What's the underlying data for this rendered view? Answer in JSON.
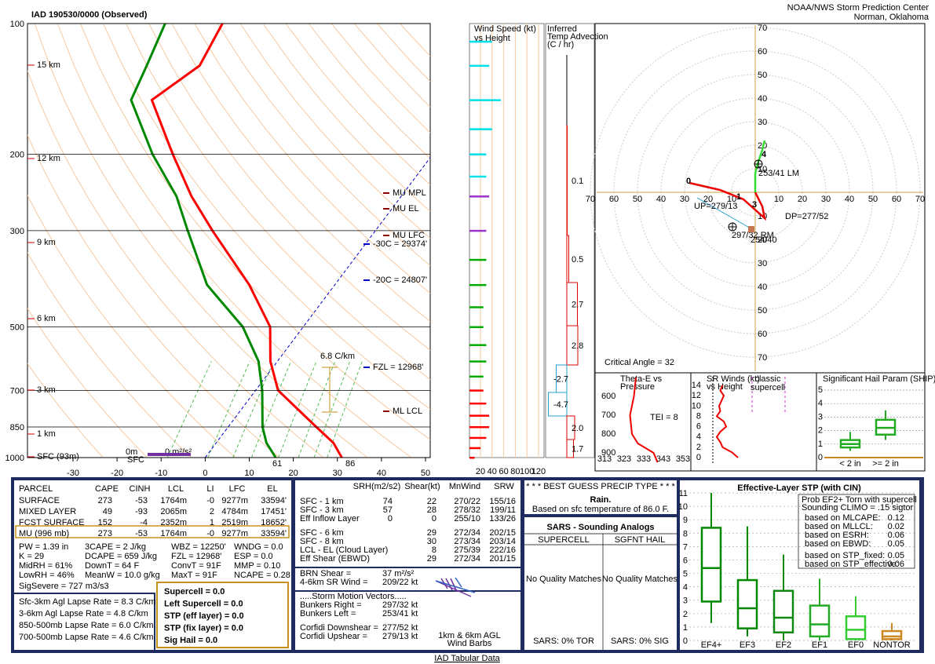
{
  "header": {
    "title": "IAD   190530/0000  (Observed)",
    "org": "NOAA/NWS Storm Prediction Center",
    "location": "Norman, Oklahoma"
  },
  "skewt": {
    "pressure_ticks": [
      100,
      200,
      300,
      500,
      700,
      850,
      1000
    ],
    "temp_ticks": [
      -30,
      -20,
      -10,
      0,
      10,
      20,
      30,
      40,
      50
    ],
    "profile": {
      "pressure": [
        1000,
        925,
        850,
        700,
        600,
        500,
        400,
        300,
        250,
        200,
        150,
        125,
        100
      ],
      "temperature": [
        31,
        26.6,
        20,
        5.1,
        -1.6,
        -7.5,
        -19.4,
        -37,
        -47.6,
        -59,
        -73,
        -68,
        -70
      ],
      "dewpoint": [
        16,
        11.4,
        7.8,
        1.5,
        -4.3,
        -13.7,
        -29,
        -42.6,
        -51,
        -63.6,
        -77.7,
        -80,
        -83
      ]
    },
    "colors": {
      "temperature": "#ff0000",
      "dewpoint": "#008800"
    },
    "height_labels": [
      "15 km",
      "12 km",
      "9 km",
      "6 km",
      "3 km",
      "1 km",
      "SFC (93m)"
    ],
    "annotations": [
      "MU MPL",
      "MU EL",
      "MU LFC",
      "-30C = 29374'",
      "-20C = 24807'",
      "FZL = 12968'",
      "ML LCL",
      "6.8 C/km",
      "0m",
      "SFC",
      "0 m²/s²",
      "61",
      "86"
    ]
  },
  "wind_speed": {
    "title": [
      "Wind Speed (kt)",
      "vs Height"
    ],
    "ticks": [
      20,
      40,
      60,
      80,
      100,
      120
    ],
    "pressure": [
      110,
      125,
      150,
      175,
      200,
      225,
      250,
      300,
      350,
      400,
      450,
      500,
      550,
      600,
      650,
      700,
      750,
      800,
      850,
      900,
      950,
      1000
    ],
    "speed": [
      40,
      35,
      55,
      40,
      30,
      30,
      35,
      30,
      30,
      30,
      25,
      25,
      30,
      30,
      25,
      25,
      30,
      35,
      35,
      30,
      20,
      10
    ],
    "colors": [
      "#00e0e8",
      "#9933cc",
      "#00aa00",
      "#ff0000"
    ]
  },
  "temp_advection": {
    "title": [
      "Inferred",
      "Temp Advection",
      "(C / hr)"
    ],
    "values": [
      0.1,
      0.5,
      2.7,
      2.8,
      -2.7,
      -4.7,
      2,
      1.7
    ],
    "value_labels": [
      "0.1",
      "0.5",
      "2.7",
      "2.8",
      "-2.7",
      "-4.7",
      "2.0",
      "1.7"
    ]
  },
  "hodograph": {
    "ring_labels": [
      10,
      20,
      30,
      40,
      50,
      60,
      70
    ],
    "u": [
      -28,
      -15,
      -5,
      4,
      3,
      0,
      0,
      1,
      2,
      3,
      4
    ],
    "v": [
      4,
      1,
      -3,
      -11,
      -6,
      0,
      8,
      12,
      15,
      18,
      22
    ],
    "height_marks": [
      "0",
      "1",
      "3",
      "4"
    ],
    "labels": [
      "253/41 LM",
      "UP=279/13",
      "DP=277/52",
      "297/32 RM",
      "254/40"
    ],
    "critical_angle": "Critical Angle = 32"
  },
  "theta_e": {
    "title": [
      "Theta-E vs",
      "Pressure"
    ],
    "pressure_ticks": [
      600,
      700,
      800,
      900
    ],
    "theta_ticks": [
      313,
      323,
      333,
      343,
      353
    ],
    "pressure": [
      500,
      600,
      700,
      800,
      850,
      900,
      950
    ],
    "theta_e": [
      329,
      328,
      326,
      327,
      330,
      338,
      340
    ],
    "tei": "TEI = 8"
  },
  "sr_winds": {
    "title": [
      "SR Winds (kt)",
      "vs Height"
    ],
    "height_ticks": [
      0,
      2,
      4,
      6,
      8,
      10,
      12,
      14
    ],
    "height": [
      0,
      1,
      2,
      3,
      4,
      5,
      6,
      7,
      8,
      9,
      10,
      11,
      12,
      13,
      14
    ],
    "speed": [
      30,
      25,
      17,
      15,
      12,
      15,
      20,
      18,
      12,
      15,
      14,
      16,
      18,
      15,
      17
    ],
    "note": [
      "classic",
      "supercell"
    ]
  },
  "ship": {
    "title": "Significant Hail Param (SHIP)",
    "ticks": [
      0,
      1,
      2,
      3,
      4,
      5
    ],
    "categories": [
      "< 2 in",
      ">= 2 in"
    ],
    "color": "#22aa22",
    "boxes": [
      {
        "whisker_low": 0.5,
        "q1": 0.75,
        "median": 1,
        "q3": 1.3,
        "whisker_high": 1.9
      },
      {
        "whisker_low": 1.3,
        "q1": 1.7,
        "median": 2.2,
        "q3": 2.8,
        "whisker_high": 3.5
      }
    ]
  },
  "parcels": {
    "header": [
      "PARCEL",
      "CAPE",
      "CINH",
      "LCL",
      "LI",
      "LFC",
      "EL"
    ],
    "rows": [
      [
        "SURFACE",
        "273",
        "-53",
        "1764m",
        "-0",
        "9277m",
        "33594'"
      ],
      [
        "MIXED LAYER",
        "49",
        "-93",
        "2065m",
        "2",
        "4784m",
        "17451'"
      ],
      [
        "FCST SURFACE",
        "152",
        "-4",
        "2352m",
        "1",
        "2519m",
        "18652'"
      ],
      [
        "MU   (996 mb)",
        "273",
        "-53",
        "1764m",
        "-0",
        "9277m",
        "33594'"
      ]
    ]
  },
  "indices": [
    [
      "PW = 1.39 in",
      "3CAPE = 2 J/kg",
      "WBZ = 12250'",
      "WNDG = 0.0"
    ],
    [
      "K = 29",
      "DCAPE = 659 J/kg",
      "FZL = 12968'",
      "ESP = 0.0"
    ],
    [
      "MidRH = 61%",
      "DownT = 64 F",
      "ConvT = 91F",
      "MMP = 0.10"
    ],
    [
      "LowRH = 46%",
      "MeanW = 10.0 g/kg",
      "MaxT = 91F",
      "NCAPE = 0.28"
    ]
  ],
  "sig_severe": "SigSevere = 727 m3/s3",
  "lapse_rates": [
    "Sfc-3km Agl Lapse Rate = 8.3 C/km",
    "3-6km Agl Lapse Rate = 4.8 C/km",
    "850-500mb Lapse Rate = 6.0 C/km",
    "700-500mb Lapse Rate = 4.6 C/km"
  ],
  "composites": [
    "Supercell = 0.0",
    "Left Supercell = 0.0",
    "STP (eff layer) = 0.0",
    "STP (fix layer) = 0.0",
    "Sig Hail = 0.0"
  ],
  "kinematics": {
    "header": [
      "SRH(m2/s2)",
      "Shear(kt)",
      "MnWind",
      "SRW"
    ],
    "rows": [
      [
        "SFC - 1 km",
        "74",
        "22",
        "270/22",
        "155/16"
      ],
      [
        "SFC - 3 km",
        "57",
        "28",
        "278/32",
        "199/11"
      ],
      [
        "Eff Inflow Layer",
        "0",
        "0",
        "255/10",
        "133/26"
      ],
      [
        "SFC - 6 km",
        null,
        "29",
        "272/34",
        "202/15"
      ],
      [
        "SFC - 8 km",
        null,
        "30",
        "273/34",
        "203/14"
      ],
      [
        "LCL - EL (Cloud Layer)",
        null,
        "8",
        "275/39",
        "222/16"
      ],
      [
        "Eff Shear (EBWD)",
        null,
        "29",
        "272/34",
        "201/15"
      ]
    ],
    "brn": [
      [
        "BRN Shear =",
        "37 m²/s²"
      ],
      [
        "4-6km SR Wind =",
        "209/22 kt"
      ]
    ],
    "storm_motion_title": ".....Storm Motion Vectors.....",
    "storm_motion": [
      [
        "Bunkers Right =",
        "297/32 kt"
      ],
      [
        "Bunkers Left =",
        "253/41 kt"
      ]
    ],
    "corfidi": [
      [
        "Corfidi Downshear =",
        "277/52 kt"
      ],
      [
        "Corfidi Upshear =",
        "279/13 kt"
      ]
    ],
    "barb_caption": [
      "1km & 6km AGL",
      "Wind Barbs"
    ]
  },
  "precip": {
    "title": "* * * BEST GUESS PRECIP TYPE * * *",
    "type": "Rain.",
    "basis": "Based on sfc temperature of 86.0 F."
  },
  "sars": {
    "title": "SARS - Sounding Analogs",
    "columns": [
      "SUPERCELL",
      "SGFNT HAIL"
    ],
    "matches": [
      "No Quality Matches",
      "No Quality Matches"
    ],
    "summary": [
      "SARS:  0% TOR",
      "SARS:  0% SIG"
    ]
  },
  "stp": {
    "title": "Effective-Layer STP (with CIN)",
    "yticks": [
      0,
      1,
      2,
      3,
      4,
      5,
      6,
      7,
      8,
      9,
      10,
      11
    ],
    "categories": [
      "EF4+",
      "EF3",
      "EF2",
      "EF1",
      "EF0",
      "NONTOR"
    ],
    "boxes": [
      {
        "whisker_low": 1.3,
        "q1": 2.9,
        "median": 5.4,
        "q3": 8.4,
        "whisker_high": 11
      },
      {
        "whisker_low": 0.3,
        "q1": 0.9,
        "median": 2.4,
        "q3": 4.5,
        "whisker_high": 8.5
      },
      {
        "whisker_low": 0,
        "q1": 0.6,
        "median": 1.7,
        "q3": 3.7,
        "whisker_high": 6.4
      },
      {
        "whisker_low": 0,
        "q1": 0.3,
        "median": 1.2,
        "q3": 2.6,
        "whisker_high": 4.6
      },
      {
        "whisker_low": 0,
        "q1": 0.1,
        "median": 0.8,
        "q3": 1.8,
        "whisker_high": 3.3
      },
      {
        "whisker_low": 0,
        "q1": 0.1,
        "median": 0.3,
        "q3": 0.7,
        "whisker_high": 1.3
      }
    ],
    "colors": [
      "#008800",
      "#008800",
      "#118811",
      "#22aa22",
      "#33cc33",
      "#cc8822"
    ],
    "legend_title": [
      "Prob EF2+ Torn with supercell",
      "Sounding CLIMO = .15 sigtor"
    ],
    "legend_rows": [
      [
        "based on MLCAPE:",
        "0.12"
      ],
      [
        "based on MLLCL:",
        "0.02"
      ],
      [
        "based on ESRH:",
        "0.06"
      ],
      [
        "based on EBWD:",
        "0.05"
      ],
      [
        "based on STP_fixed:",
        "0.05"
      ],
      [
        "based on STP_effective:",
        "0.06"
      ]
    ]
  },
  "footer": {
    "link": "IAD Tabular Data"
  }
}
